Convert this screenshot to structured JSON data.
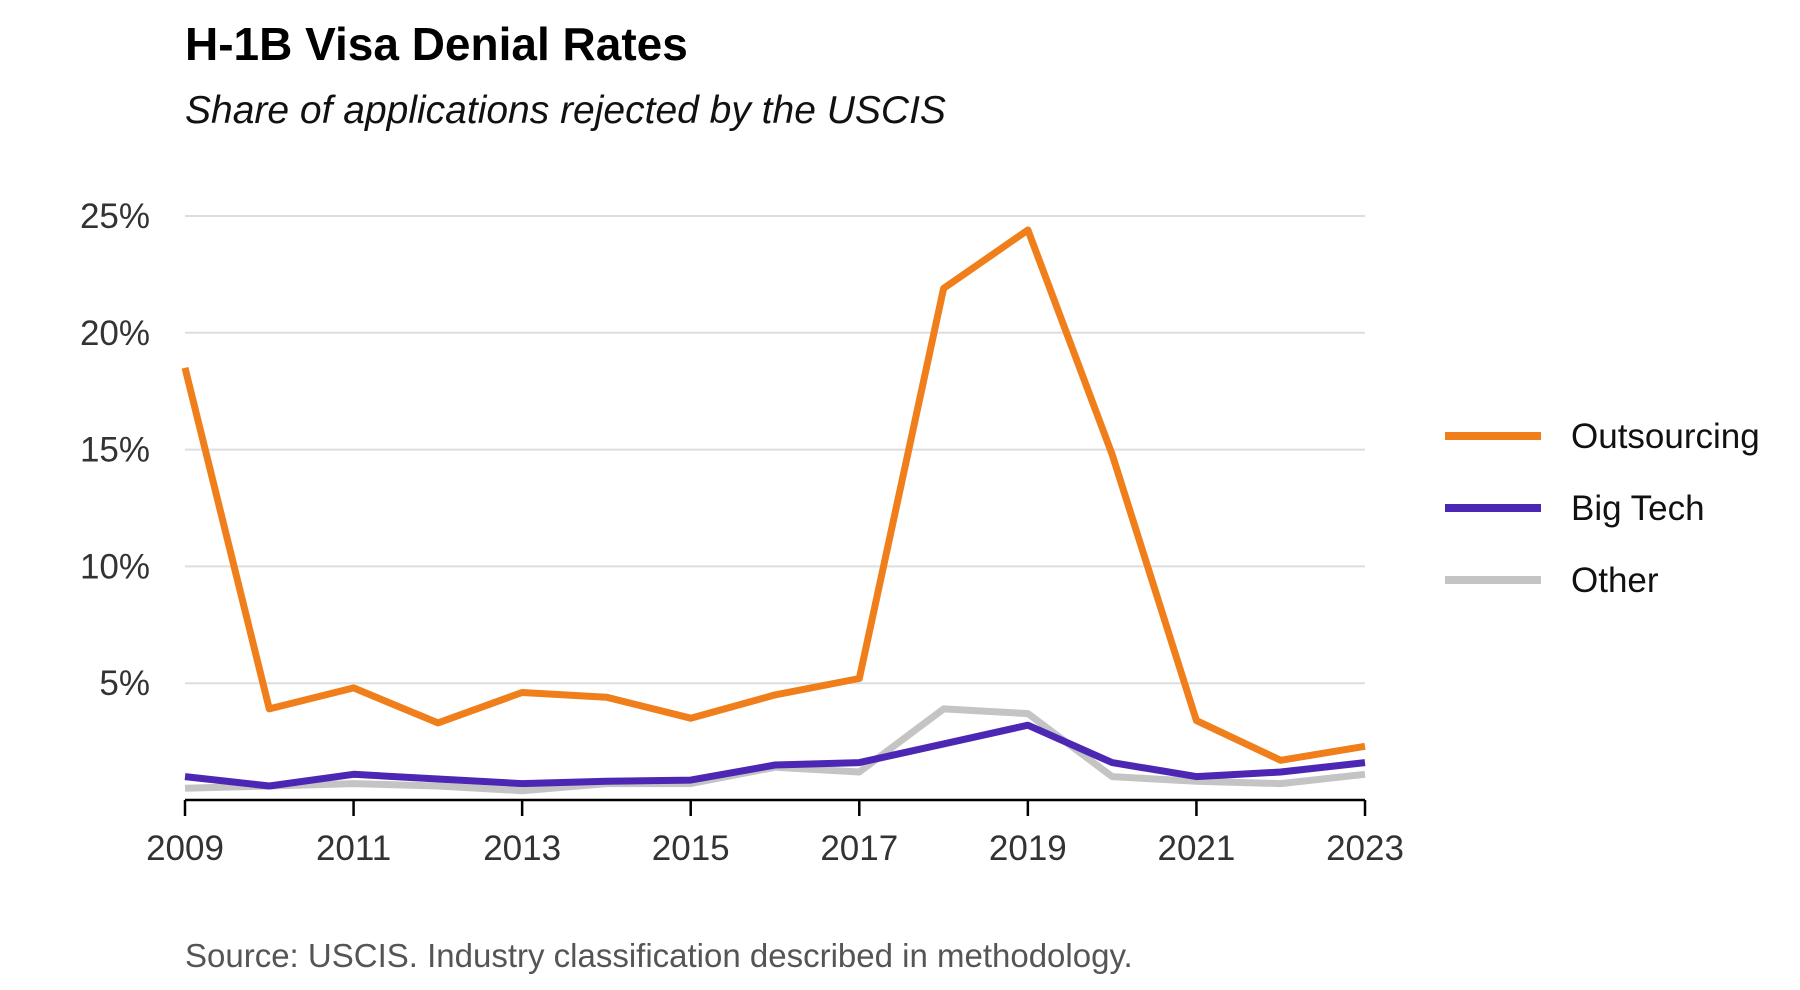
{
  "chart_data": {
    "type": "line",
    "title": "H-1B Visa Denial Rates",
    "subtitle": "Share of applications rejected by the USCIS",
    "source": "Source: USCIS. Industry classification described in methodology.",
    "x": [
      2009,
      2010,
      2011,
      2012,
      2013,
      2014,
      2015,
      2016,
      2017,
      2018,
      2019,
      2020,
      2021,
      2022,
      2023
    ],
    "x_ticks": [
      "2009",
      "2011",
      "2013",
      "2015",
      "2017",
      "2019",
      "2021",
      "2023"
    ],
    "y_ticks": [
      "5%",
      "10%",
      "15%",
      "20%",
      "25%"
    ],
    "y_tick_values": [
      5,
      10,
      15,
      20,
      25
    ],
    "ylim": [
      0,
      25
    ],
    "xlim": [
      2009,
      2023
    ],
    "grid": true,
    "legend_position": "right",
    "series": [
      {
        "name": "Outsourcing",
        "color": "#f07f1b",
        "values": [
          18.5,
          3.9,
          4.8,
          3.3,
          4.6,
          4.4,
          3.5,
          4.5,
          5.2,
          21.9,
          24.4,
          14.8,
          3.4,
          1.7,
          2.3
        ]
      },
      {
        "name": "Big Tech",
        "color": "#4b27b3",
        "values": [
          1.0,
          0.6,
          1.1,
          0.9,
          0.7,
          0.8,
          0.85,
          1.5,
          1.6,
          2.4,
          3.2,
          1.6,
          1.0,
          1.2,
          1.6
        ]
      },
      {
        "name": "Other",
        "color": "#c4c4c4",
        "values": [
          0.5,
          0.6,
          0.7,
          0.6,
          0.4,
          0.7,
          0.7,
          1.4,
          1.2,
          3.9,
          3.7,
          1.0,
          0.8,
          0.7,
          1.1
        ]
      }
    ]
  }
}
